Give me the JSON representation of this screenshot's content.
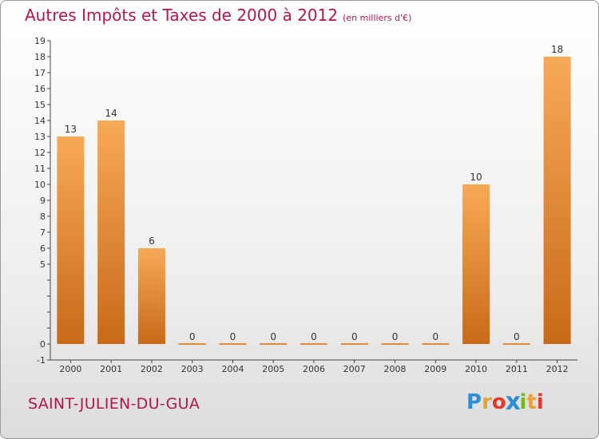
{
  "title": "Autres Impôts et Taxes de 2000 à 2012",
  "unit": "(en milliers d'€)",
  "place": "SAINT-JULIEN-DU-GUA",
  "logo": {
    "letters": [
      "P",
      "r",
      "o",
      "x",
      "i",
      "t",
      "i"
    ],
    "colors": [
      "#2a8fd4",
      "#e8a23a",
      "#e03a2c",
      "#2a8fd4",
      "#7ab51d",
      "#e8a23a",
      "#e03a2c"
    ]
  },
  "colors": {
    "title": "#b5164a",
    "bar_light": "#f7a957",
    "bar_dark": "#c86a18"
  },
  "chart_data": {
    "type": "bar",
    "categories": [
      "2000",
      "2001",
      "2002",
      "2003",
      "2004",
      "2005",
      "2006",
      "2007",
      "2008",
      "2009",
      "2010",
      "2011",
      "2012"
    ],
    "values": [
      13,
      14,
      6,
      0,
      0,
      0,
      0,
      0,
      0,
      0,
      10,
      0,
      18
    ],
    "data_labels": [
      "13",
      "14",
      "6",
      "0",
      "0",
      "0",
      "0",
      "0",
      "0",
      "0",
      "10",
      "0",
      "18"
    ],
    "title": "Autres Impôts et Taxes de 2000 à 2012",
    "xlabel": "",
    "ylabel": "",
    "ylim": [
      -1,
      19
    ],
    "yticks": [
      "-1",
      "0",
      "",
      "",
      "",
      "",
      "5",
      "6",
      "7",
      "8",
      "9",
      "10",
      "11",
      "12",
      "13",
      "14",
      "15",
      "16",
      "17",
      "18",
      "19"
    ],
    "grid": false,
    "legend": "none"
  }
}
